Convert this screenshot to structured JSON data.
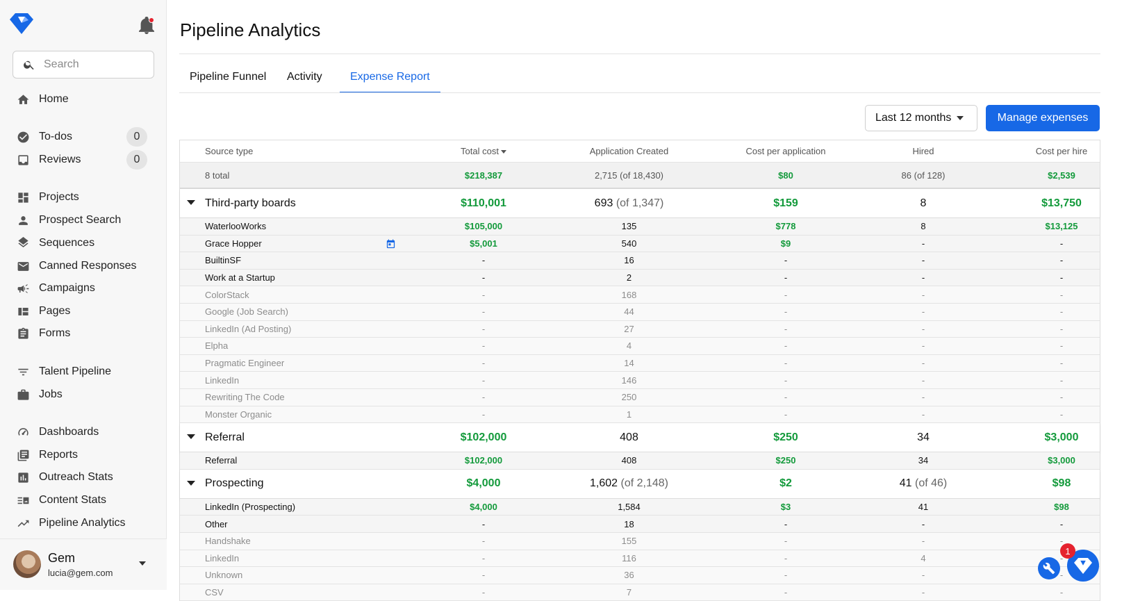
{
  "sidebar": {
    "search_placeholder": "Search",
    "items": [
      {
        "label": "Home",
        "icon": "home-icon"
      },
      {
        "label": "To-dos",
        "icon": "check-circle-icon",
        "badge": "0"
      },
      {
        "label": "Reviews",
        "icon": "inbox-icon",
        "badge": "0"
      },
      {
        "label": "Projects",
        "icon": "dashboard-grid-icon"
      },
      {
        "label": "Prospect Search",
        "icon": "person-icon"
      },
      {
        "label": "Sequences",
        "icon": "layers-icon"
      },
      {
        "label": "Canned Responses",
        "icon": "mail-icon"
      },
      {
        "label": "Campaigns",
        "icon": "megaphone-icon"
      },
      {
        "label": "Pages",
        "icon": "page-layout-icon"
      },
      {
        "label": "Forms",
        "icon": "clipboard-icon"
      },
      {
        "label": "Talent Pipeline",
        "icon": "filter-icon"
      },
      {
        "label": "Jobs",
        "icon": "briefcase-icon"
      },
      {
        "label": "Dashboards",
        "icon": "gauge-icon"
      },
      {
        "label": "Reports",
        "icon": "report-icon"
      },
      {
        "label": "Outreach Stats",
        "icon": "bar-chart-icon"
      },
      {
        "label": "Content Stats",
        "icon": "content-stats-icon"
      },
      {
        "label": "Pipeline Analytics",
        "icon": "trending-up-icon"
      }
    ],
    "user": {
      "name": "Gem",
      "email": "lucia@gem.com"
    }
  },
  "header": {
    "title": "Pipeline Analytics"
  },
  "tabs": [
    {
      "label": "Pipeline Funnel",
      "active": false
    },
    {
      "label": "Activity",
      "active": false
    },
    {
      "label": "Expense Report",
      "active": true
    }
  ],
  "controls": {
    "date_range": "Last 12 months",
    "manage_label": "Manage expenses"
  },
  "table": {
    "columns": [
      "Source type",
      "Total cost",
      "Application Created",
      "Cost per application",
      "Hired",
      "Cost per hire"
    ],
    "totals": {
      "label": "8 total",
      "total_cost": "$218,387",
      "apps": "2,715",
      "apps_of": "(of 18,430)",
      "cpa": "$80",
      "hired": "86",
      "hired_of": "(of 128)",
      "cph": "$2,539"
    },
    "groups": [
      {
        "name": "Third-party boards",
        "total_cost": "$110,001",
        "apps": "693",
        "apps_of": "(of 1,347)",
        "cpa": "$159",
        "hired": "8",
        "hired_of": "",
        "cph": "$13,750",
        "rows": [
          {
            "name": "WaterlooWorks",
            "total_cost": "$105,000",
            "apps": "135",
            "cpa": "$778",
            "hired": "8",
            "cph": "$13,125",
            "muted": false
          },
          {
            "name": "Grace Hopper",
            "total_cost": "$5,001",
            "apps": "540",
            "cpa": "$9",
            "hired": "-",
            "cph": "-",
            "muted": false,
            "calendar": true
          },
          {
            "name": "BuiltinSF",
            "total_cost": "-",
            "apps": "16",
            "cpa": "-",
            "hired": "-",
            "cph": "-",
            "muted": false
          },
          {
            "name": "Work at a Startup",
            "total_cost": "-",
            "apps": "2",
            "cpa": "-",
            "hired": "-",
            "cph": "-",
            "muted": false
          },
          {
            "name": "ColorStack",
            "total_cost": "-",
            "apps": "168",
            "cpa": "-",
            "hired": "-",
            "cph": "-",
            "muted": true
          },
          {
            "name": "Google (Job Search)",
            "total_cost": "-",
            "apps": "44",
            "cpa": "-",
            "hired": "-",
            "cph": "-",
            "muted": true
          },
          {
            "name": "LinkedIn (Ad Posting)",
            "total_cost": "-",
            "apps": "27",
            "cpa": "-",
            "hired": "-",
            "cph": "-",
            "muted": true
          },
          {
            "name": "Elpha",
            "total_cost": "-",
            "apps": "4",
            "cpa": "-",
            "hired": "-",
            "cph": "-",
            "muted": true
          },
          {
            "name": "Pragmatic Engineer",
            "total_cost": "-",
            "apps": "14",
            "cpa": "-",
            "hired": "-",
            "cph": "-",
            "muted": true
          },
          {
            "name": "LinkedIn",
            "total_cost": "-",
            "apps": "146",
            "cpa": "-",
            "hired": "-",
            "cph": "-",
            "muted": true
          },
          {
            "name": "Rewriting The Code",
            "total_cost": "-",
            "apps": "250",
            "cpa": "-",
            "hired": "-",
            "cph": "-",
            "muted": true
          },
          {
            "name": "Monster Organic",
            "total_cost": "-",
            "apps": "1",
            "cpa": "-",
            "hired": "-",
            "cph": "-",
            "muted": true
          }
        ]
      },
      {
        "name": "Referral",
        "total_cost": "$102,000",
        "apps": "408",
        "apps_of": "",
        "cpa": "$250",
        "hired": "34",
        "hired_of": "",
        "cph": "$3,000",
        "rows": [
          {
            "name": "Referral",
            "total_cost": "$102,000",
            "apps": "408",
            "cpa": "$250",
            "hired": "34",
            "cph": "$3,000",
            "muted": false
          }
        ]
      },
      {
        "name": "Prospecting",
        "total_cost": "$4,000",
        "apps": "1,602",
        "apps_of": "(of 2,148)",
        "cpa": "$2",
        "hired": "41",
        "hired_of": "(of 46)",
        "cph": "$98",
        "rows": [
          {
            "name": "LinkedIn (Prospecting)",
            "total_cost": "$4,000",
            "apps": "1,584",
            "cpa": "$3",
            "hired": "41",
            "cph": "$98",
            "muted": false
          },
          {
            "name": "Other",
            "total_cost": "-",
            "apps": "18",
            "cpa": "-",
            "hired": "-",
            "cph": "-",
            "muted": false
          },
          {
            "name": "Handshake",
            "total_cost": "-",
            "apps": "155",
            "cpa": "-",
            "hired": "-",
            "cph": "-",
            "muted": true
          },
          {
            "name": "LinkedIn",
            "total_cost": "-",
            "apps": "116",
            "cpa": "-",
            "hired": "4",
            "cph": "-",
            "muted": true
          },
          {
            "name": "Unknown",
            "total_cost": "-",
            "apps": "36",
            "cpa": "-",
            "hired": "-",
            "cph": "-",
            "muted": true
          },
          {
            "name": "CSV",
            "total_cost": "-",
            "apps": "7",
            "cpa": "-",
            "hired": "-",
            "cph": "-",
            "muted": true
          }
        ]
      }
    ]
  },
  "widget": {
    "notification_count": "1"
  },
  "colors": {
    "accent": "#1768e6",
    "money": "#139a3b",
    "alert": "#e5222e"
  }
}
